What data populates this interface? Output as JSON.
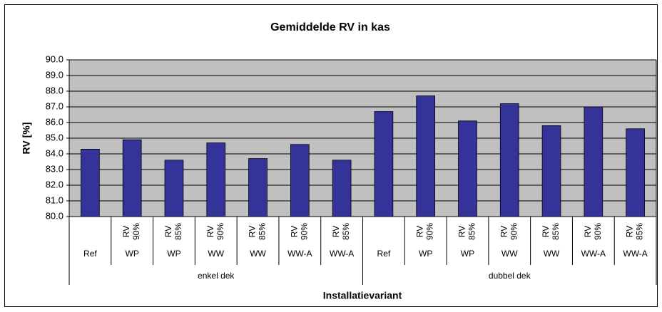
{
  "chart_data": {
    "type": "bar",
    "title": "Gemiddelde RV in kas",
    "y_label": "RV [%]",
    "x_label": "Installatievariant",
    "setpoints": [
      null,
      "RV 90%",
      "RV 85%",
      "RV 90%",
      "RV 85%",
      "RV 90%",
      "RV 85%",
      null,
      "RV 90%",
      "RV 85%",
      "RV 90%",
      "RV 85%",
      "RV 90%",
      "RV 85%"
    ],
    "categories": [
      "Ref",
      "WP",
      "WP",
      "WW",
      "WW",
      "WW-A",
      "WW-A",
      "Ref",
      "WP",
      "WP",
      "WW",
      "WW",
      "WW-A",
      "WW-A"
    ],
    "groups": [
      "enkel dek",
      "dubbel dek"
    ],
    "values": [
      84.3,
      84.9,
      83.6,
      84.7,
      83.7,
      84.6,
      83.6,
      86.7,
      87.7,
      86.1,
      87.2,
      85.8,
      87.0,
      85.6
    ],
    "color": "#333399",
    "ylim": [
      80,
      90
    ],
    "yticks": [
      {
        "value": 80,
        "label": "80.0"
      },
      {
        "value": 81,
        "label": "81.0"
      },
      {
        "value": 82,
        "label": "82.0"
      },
      {
        "value": 83,
        "label": "83.0"
      },
      {
        "value": 84,
        "label": "84.0"
      },
      {
        "value": 85,
        "label": "85.0"
      },
      {
        "value": 86,
        "label": "86.0"
      },
      {
        "value": 87,
        "label": "87.0"
      },
      {
        "value": 88,
        "label": "88.0"
      },
      {
        "value": 89,
        "label": "89.0"
      },
      {
        "value": 90,
        "label": "90.0"
      }
    ],
    "grid": true,
    "plot_background": "#c0c0c0"
  }
}
